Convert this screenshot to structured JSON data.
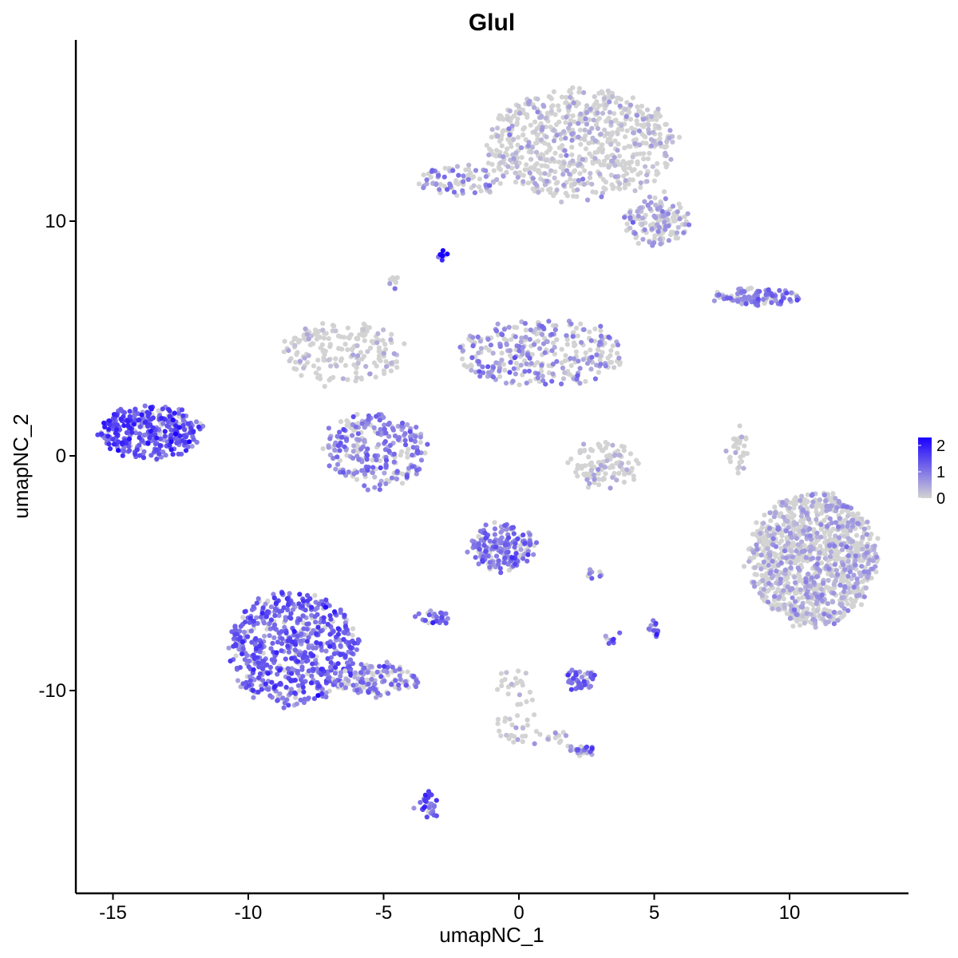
{
  "chart_data": {
    "type": "scatter",
    "title": "Glul",
    "xlabel": "umapNC_1",
    "ylabel": "umapNC_2",
    "xlim": [
      -16.3,
      14.5
    ],
    "ylim": [
      -18.5,
      17.8
    ],
    "x_ticks": [
      -15,
      -10,
      -5,
      0,
      5,
      10
    ],
    "x_tick_labels": [
      "-15",
      "-10",
      "-5",
      "0",
      "5",
      "10"
    ],
    "y_ticks": [
      -10,
      0,
      10
    ],
    "y_tick_labels": [
      "-10",
      "0",
      "10"
    ],
    "grid": false,
    "legend": {
      "placement": "right",
      "type": "colorbar",
      "ticks": [
        2,
        1,
        0
      ],
      "tick_labels": [
        "2",
        "1",
        "0"
      ],
      "range": [
        0,
        2.3
      ],
      "low_color": "#D3D3D3",
      "high_color": "#1A00FF"
    },
    "color_scale": {
      "low": "#D3D3D3",
      "high": "#1A00FF",
      "min": 0,
      "max": 2.3
    },
    "clusters": [
      {
        "name": "top-right",
        "cx": 2.3,
        "cy": 13.3,
        "rx": 3.5,
        "ry": 2.3,
        "n": 700,
        "expr": 0.35
      },
      {
        "name": "top-right-arm",
        "cx": 5.1,
        "cy": 10.0,
        "rx": 1.2,
        "ry": 1.0,
        "n": 140,
        "expr": 0.55
      },
      {
        "name": "top-left-small",
        "cx": -2.2,
        "cy": 11.7,
        "rx": 1.5,
        "ry": 0.6,
        "n": 80,
        "expr": 0.7
      },
      {
        "name": "mid-left-ring",
        "cx": -5.3,
        "cy": 0.2,
        "rx": 1.9,
        "ry": 1.6,
        "n": 260,
        "expr": 0.9
      },
      {
        "name": "mid-branch-left",
        "cx": -6.5,
        "cy": 4.4,
        "rx": 2.2,
        "ry": 1.3,
        "n": 190,
        "expr": 0.25
      },
      {
        "name": "mid-branch-right",
        "cx": 0.8,
        "cy": 4.4,
        "rx": 3.1,
        "ry": 1.4,
        "n": 310,
        "expr": 0.7
      },
      {
        "name": "left-island",
        "cx": -13.6,
        "cy": 1.0,
        "rx": 1.9,
        "ry": 1.1,
        "n": 340,
        "expr": 1.35
      },
      {
        "name": "bottom-left",
        "cx": -8.4,
        "cy": -8.2,
        "rx": 2.4,
        "ry": 2.4,
        "n": 620,
        "expr": 1.15
      },
      {
        "name": "bottom-left-tail",
        "cx": -5.3,
        "cy": -9.5,
        "rx": 1.7,
        "ry": 0.7,
        "n": 130,
        "expr": 0.9
      },
      {
        "name": "center-bottom",
        "cx": -0.6,
        "cy": -3.9,
        "rx": 1.2,
        "ry": 1.0,
        "n": 180,
        "expr": 1.0
      },
      {
        "name": "right-big",
        "cx": 10.9,
        "cy": -4.4,
        "rx": 2.4,
        "ry": 2.8,
        "n": 1100,
        "expr": 0.45
      },
      {
        "name": "right-mid-strip",
        "cx": 8.8,
        "cy": 6.8,
        "rx": 1.7,
        "ry": 0.35,
        "n": 110,
        "expr": 0.9
      },
      {
        "name": "center-right-c",
        "cx": 3.1,
        "cy": -0.4,
        "rx": 1.3,
        "ry": 0.9,
        "n": 110,
        "expr": 0.25
      },
      {
        "name": "bottom-mid-1",
        "cx": 2.3,
        "cy": -9.5,
        "rx": 0.6,
        "ry": 0.4,
        "n": 45,
        "expr": 1.1
      },
      {
        "name": "bottom-mid-2",
        "cx": 2.3,
        "cy": -12.6,
        "rx": 0.45,
        "ry": 0.25,
        "n": 25,
        "expr": 1.1
      },
      {
        "name": "bottom-mid-3",
        "cx": -3.4,
        "cy": -14.8,
        "rx": 0.35,
        "ry": 0.6,
        "n": 30,
        "expr": 1.2
      },
      {
        "name": "center-small-left",
        "cx": -3.2,
        "cy": -6.9,
        "rx": 0.6,
        "ry": 0.3,
        "n": 30,
        "expr": 1.0
      },
      {
        "name": "small-5",
        "cx": 5.0,
        "cy": -7.4,
        "rx": 0.25,
        "ry": 0.3,
        "n": 14,
        "expr": 1.2
      },
      {
        "name": "small-3.5",
        "cx": 3.4,
        "cy": -7.7,
        "rx": 0.2,
        "ry": 0.2,
        "n": 8,
        "expr": 1.1
      },
      {
        "name": "small-2.7",
        "cx": 2.8,
        "cy": -5.0,
        "rx": 0.35,
        "ry": 0.15,
        "n": 8,
        "expr": 0.9
      },
      {
        "name": "right-arc",
        "cx": 8.1,
        "cy": 0.2,
        "rx": 0.35,
        "ry": 0.9,
        "n": 30,
        "expr": 0.15
      },
      {
        "name": "hot-spot",
        "cx": -2.9,
        "cy": 8.5,
        "rx": 0.2,
        "ry": 0.15,
        "n": 10,
        "expr": 2.1
      },
      {
        "name": "small-top-dot",
        "cx": -4.6,
        "cy": 7.4,
        "rx": 0.3,
        "ry": 0.2,
        "n": 8,
        "expr": 0.6
      },
      {
        "name": "trail-low-center",
        "cx": -0.2,
        "cy": -10.7,
        "rx": 0.7,
        "ry": 1.6,
        "n": 45,
        "expr": 0.3
      },
      {
        "name": "trail-low-center-2",
        "cx": 1.0,
        "cy": -12.1,
        "rx": 1.0,
        "ry": 0.4,
        "n": 20,
        "expr": 0.4
      }
    ]
  }
}
